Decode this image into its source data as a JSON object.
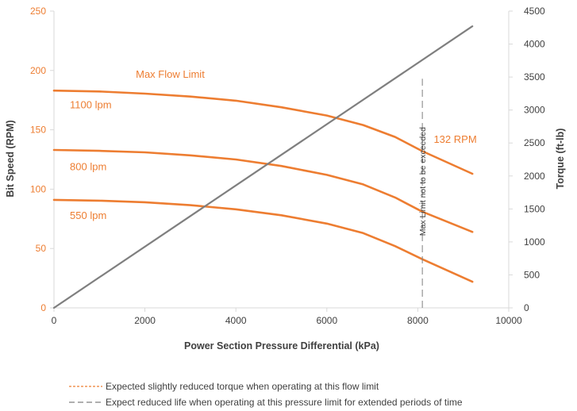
{
  "chart_data": {
    "type": "line",
    "xlabel": "Power Section Pressure Differential (kPa)",
    "ylabel_left": "Bit Speed (RPM)",
    "ylabel_right": "Torque (ft-lb)",
    "xlim": [
      0,
      10000
    ],
    "ylim_left": [
      0,
      250
    ],
    "ylim_right": [
      0,
      4500
    ],
    "x_ticks": [
      "0",
      "2000",
      "4000",
      "6000",
      "8000",
      "10000"
    ],
    "y_left_ticks": [
      "0",
      "50",
      "100",
      "150",
      "200",
      "250"
    ],
    "y_right_ticks": [
      "0",
      "500",
      "1000",
      "1500",
      "2000",
      "2500",
      "3000",
      "3500",
      "4000",
      "4500"
    ],
    "grid": false,
    "series": [
      {
        "name": "1100 lpm",
        "axis": "left",
        "color": "#ED7D31",
        "x": [
          0,
          1000,
          2000,
          3000,
          4000,
          5000,
          6000,
          6800,
          7500,
          8100,
          9200
        ],
        "y": [
          183,
          182.3,
          180.5,
          178,
          174.5,
          169,
          162,
          154,
          144,
          132,
          113
        ]
      },
      {
        "name": "800 lpm",
        "axis": "left",
        "color": "#ED7D31",
        "x": [
          0,
          1000,
          2000,
          3000,
          4000,
          5000,
          6000,
          6800,
          7500,
          8100,
          9200
        ],
        "y": [
          133,
          132.3,
          131,
          128.5,
          125,
          119.5,
          112,
          104,
          93,
          81,
          64
        ]
      },
      {
        "name": "550 lpm",
        "axis": "left",
        "color": "#ED7D31",
        "x": [
          0,
          1000,
          2000,
          3000,
          4000,
          5000,
          6000,
          6800,
          7500,
          8100,
          9200
        ],
        "y": [
          91,
          90.3,
          89,
          86.5,
          83,
          78,
          71,
          63,
          52,
          41,
          22
        ]
      },
      {
        "axis": "right",
        "color": "#7F7F7F",
        "x": [
          0,
          9200
        ],
        "y": [
          0,
          4270
        ]
      }
    ],
    "limit_line": {
      "x": 8100,
      "y_bottom": 0,
      "y_top": 193,
      "label": "Max Limit not to be exceeded"
    },
    "annotations": [
      {
        "text": "Max Flow Limit",
        "x": 1800,
        "y": 194
      },
      {
        "text": "1100 lpm",
        "x": 350,
        "y": 168
      },
      {
        "text": "800 lpm",
        "x": 350,
        "y": 116
      },
      {
        "text": "550 lpm",
        "x": 350,
        "y": 75
      },
      {
        "text": "132 RPM",
        "x": 8350,
        "y": 139
      }
    ],
    "legend": [
      {
        "text": "Expected slightly reduced torque when operating at this flow limit",
        "style": "dashed-orange"
      },
      {
        "text": "Expect reduced life when operating at this pressure limit for extended periods of time",
        "style": "dashed-gray"
      }
    ],
    "colors": {
      "flow": "#ED7D31",
      "torque": "#7F7F7F",
      "axis": "#404040",
      "limit": "#7F7F7F"
    }
  }
}
